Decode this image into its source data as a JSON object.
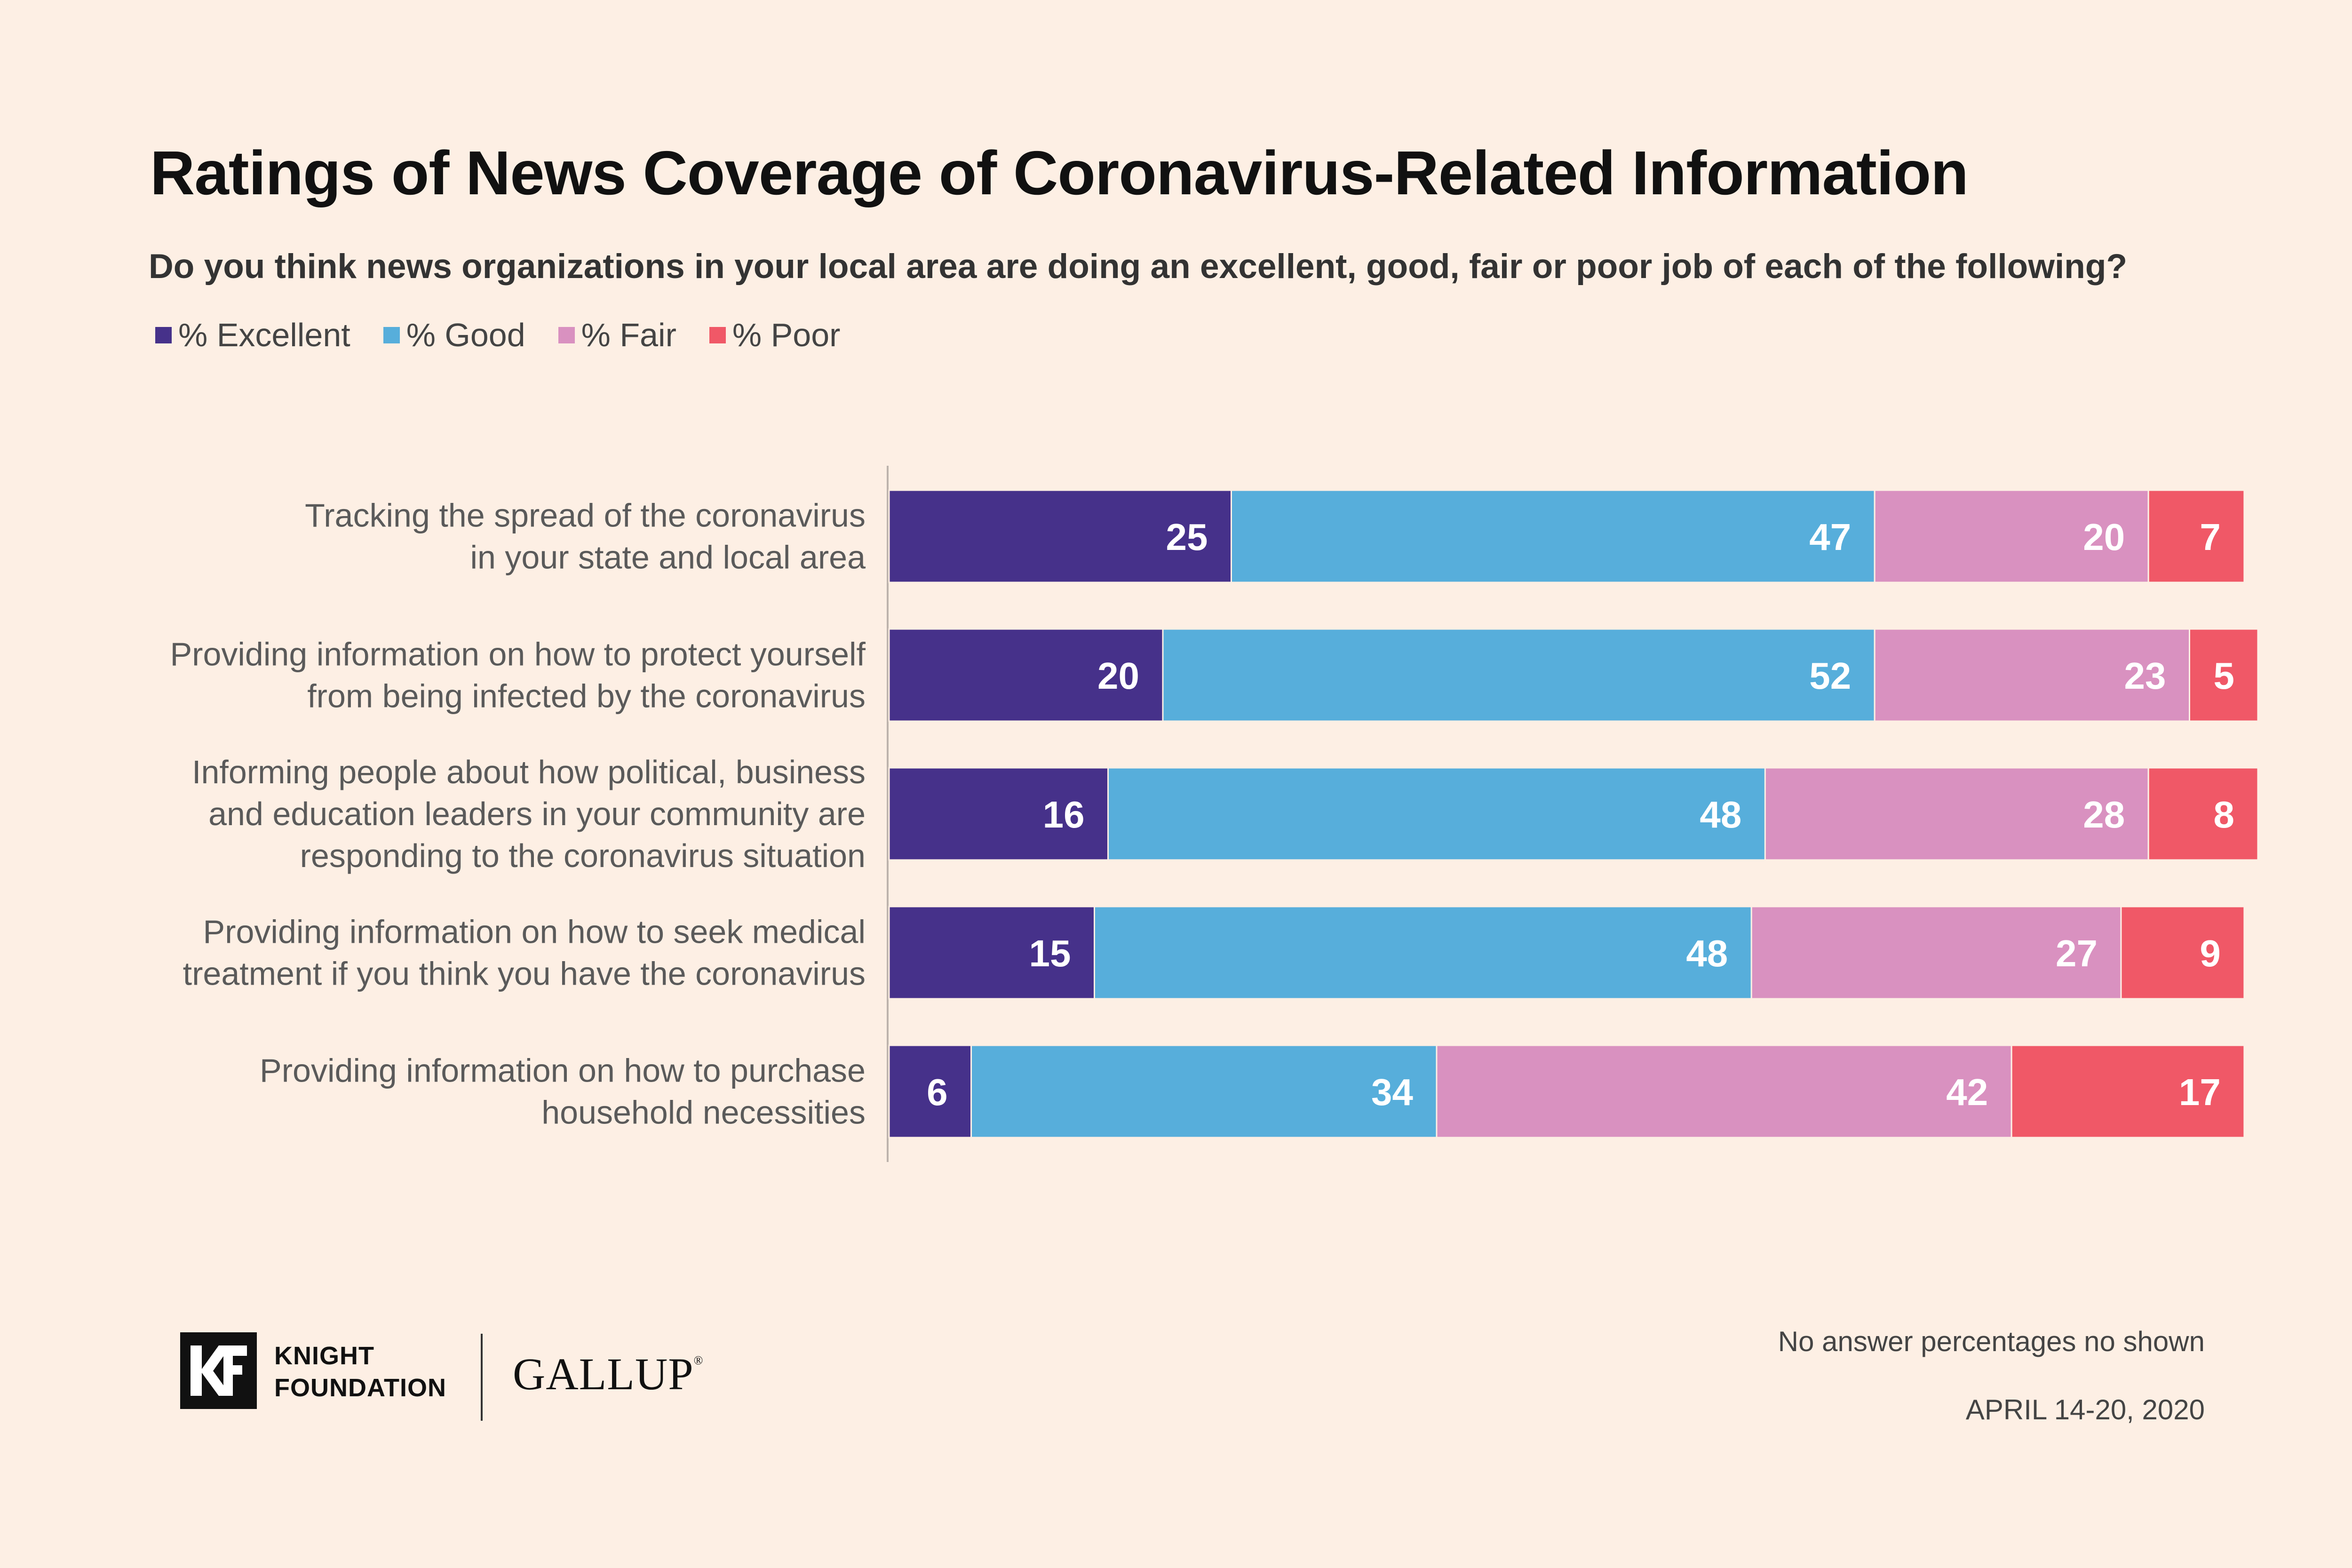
{
  "colors": {
    "excellent": "#46318a",
    "good": "#57aedb",
    "fair": "#d991c0",
    "poor": "#f05867",
    "background": "#fdefe4"
  },
  "chart_data": {
    "type": "bar",
    "orientation": "horizontal",
    "stacked": true,
    "title": "Ratings of News Coverage of Coronavirus-Related Information",
    "subtitle": "Do you think news organizations in your local area are doing an excellent, good, fair or poor job of each of the following?",
    "legend_position": "top-left",
    "categories": [
      [
        "Tracking the spread of the coronavirus",
        "in your state and local area"
      ],
      [
        "Providing information on how to protect yourself",
        "from being infected by the coronavirus"
      ],
      [
        "Informing people about how political, business",
        "and education leaders in your community are",
        "responding to the coronavirus situation"
      ],
      [
        "Providing information on how to seek medical",
        "treatment if you think you have the coronavirus"
      ],
      [
        "Providing information on how to purchase",
        "household necessities"
      ]
    ],
    "series": [
      {
        "name": "% Excellent",
        "color": "#46318a",
        "values": [
          25,
          20,
          16,
          15,
          6
        ]
      },
      {
        "name": "% Good",
        "color": "#57aedb",
        "values": [
          47,
          52,
          48,
          48,
          34
        ]
      },
      {
        "name": "% Fair",
        "color": "#d991c0",
        "values": [
          20,
          23,
          28,
          27,
          42
        ]
      },
      {
        "name": "% Poor",
        "color": "#f05867",
        "values": [
          7,
          5,
          8,
          9,
          17
        ]
      }
    ],
    "xlim": [
      0,
      100
    ],
    "grid": false
  },
  "footer": {
    "knight_line1": "KNIGHT",
    "knight_line2": "FOUNDATION",
    "gallup": "GALLUP",
    "gallup_mark": "®",
    "note": "No answer percentages no shown",
    "date": "APRIL  14-20, 2020"
  }
}
